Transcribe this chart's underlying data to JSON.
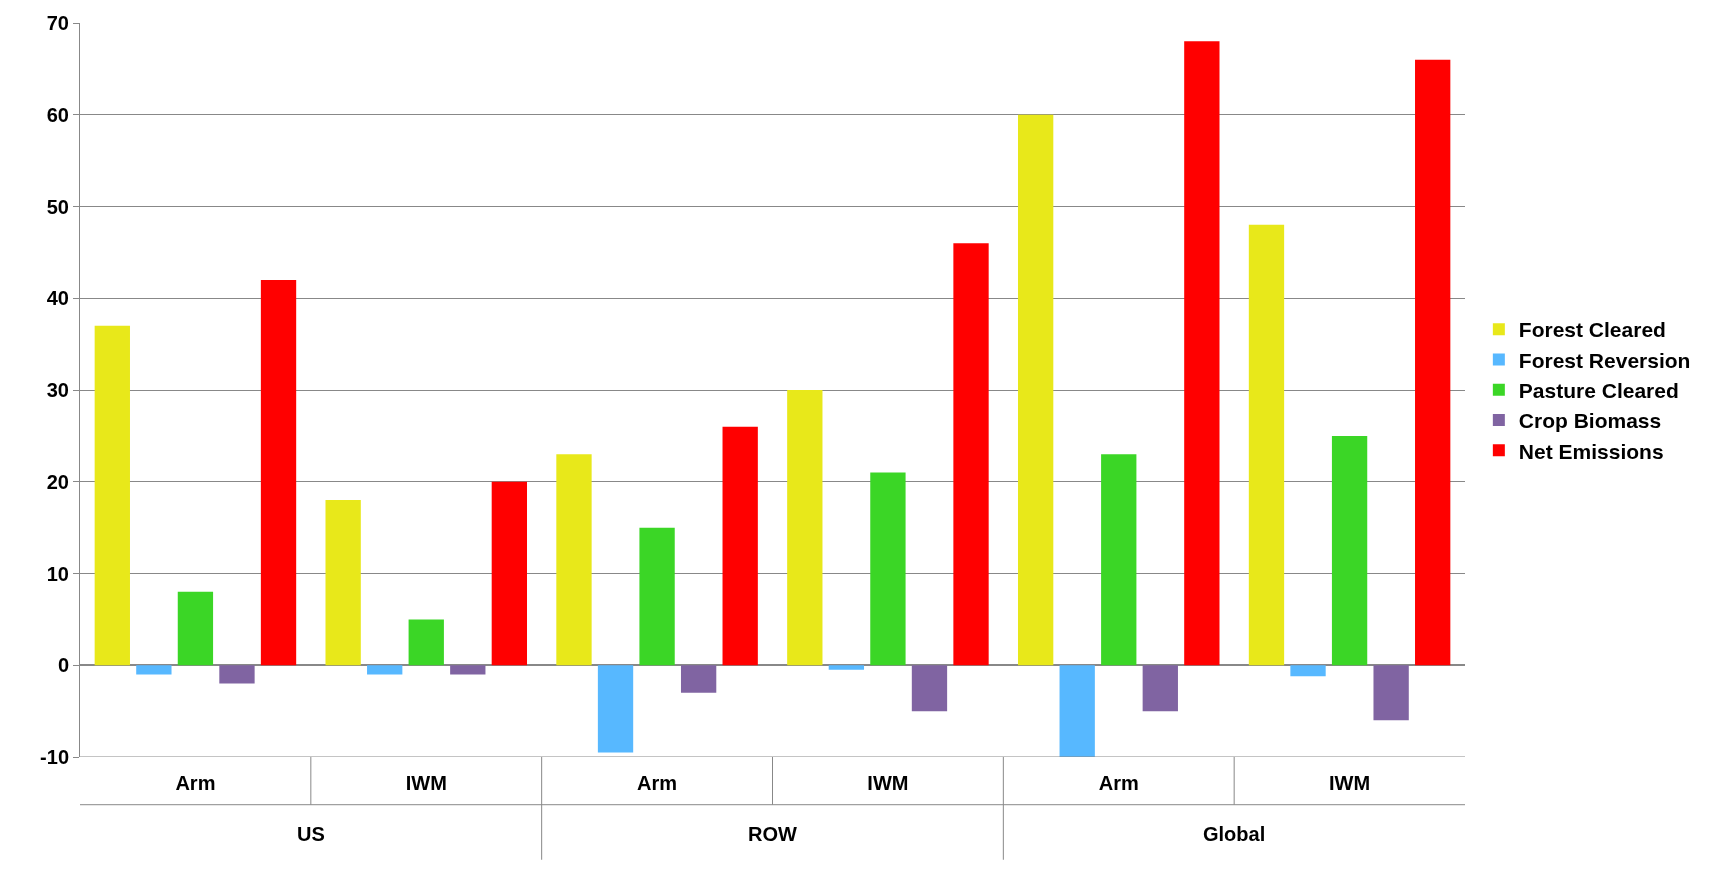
{
  "chart_data": {
    "type": "bar",
    "categories": [
      "Arm",
      "IWM",
      "Arm",
      "IWM",
      "Arm",
      "IWM"
    ],
    "series": [
      {
        "name": "Forest Cleared",
        "color": "#e8e81a",
        "values": [
          37,
          18,
          23,
          30,
          60,
          48
        ]
      },
      {
        "name": "Forest Reversion",
        "color": "#57b8ff",
        "values": [
          -1,
          -1,
          -9.5,
          -0.5,
          -10,
          -1.2
        ]
      },
      {
        "name": "Pasture Cleared",
        "color": "#3bd626",
        "values": [
          8,
          5,
          15,
          21,
          23,
          25
        ]
      },
      {
        "name": "Crop Biomass",
        "color": "#8064a2",
        "values": [
          -2,
          -1,
          -3,
          -5,
          -5,
          -6
        ]
      },
      {
        "name": "Net Emissions",
        "color": "#ff0000",
        "values": [
          42,
          20,
          26,
          46,
          68,
          66
        ]
      }
    ],
    "annotations": [
      "US",
      "ROW",
      "Global"
    ],
    "ylim": [
      -10,
      70
    ],
    "yticks": [
      -10,
      0,
      10,
      20,
      30,
      40,
      50,
      60,
      70
    ],
    "grid": "y",
    "legend": "right"
  }
}
